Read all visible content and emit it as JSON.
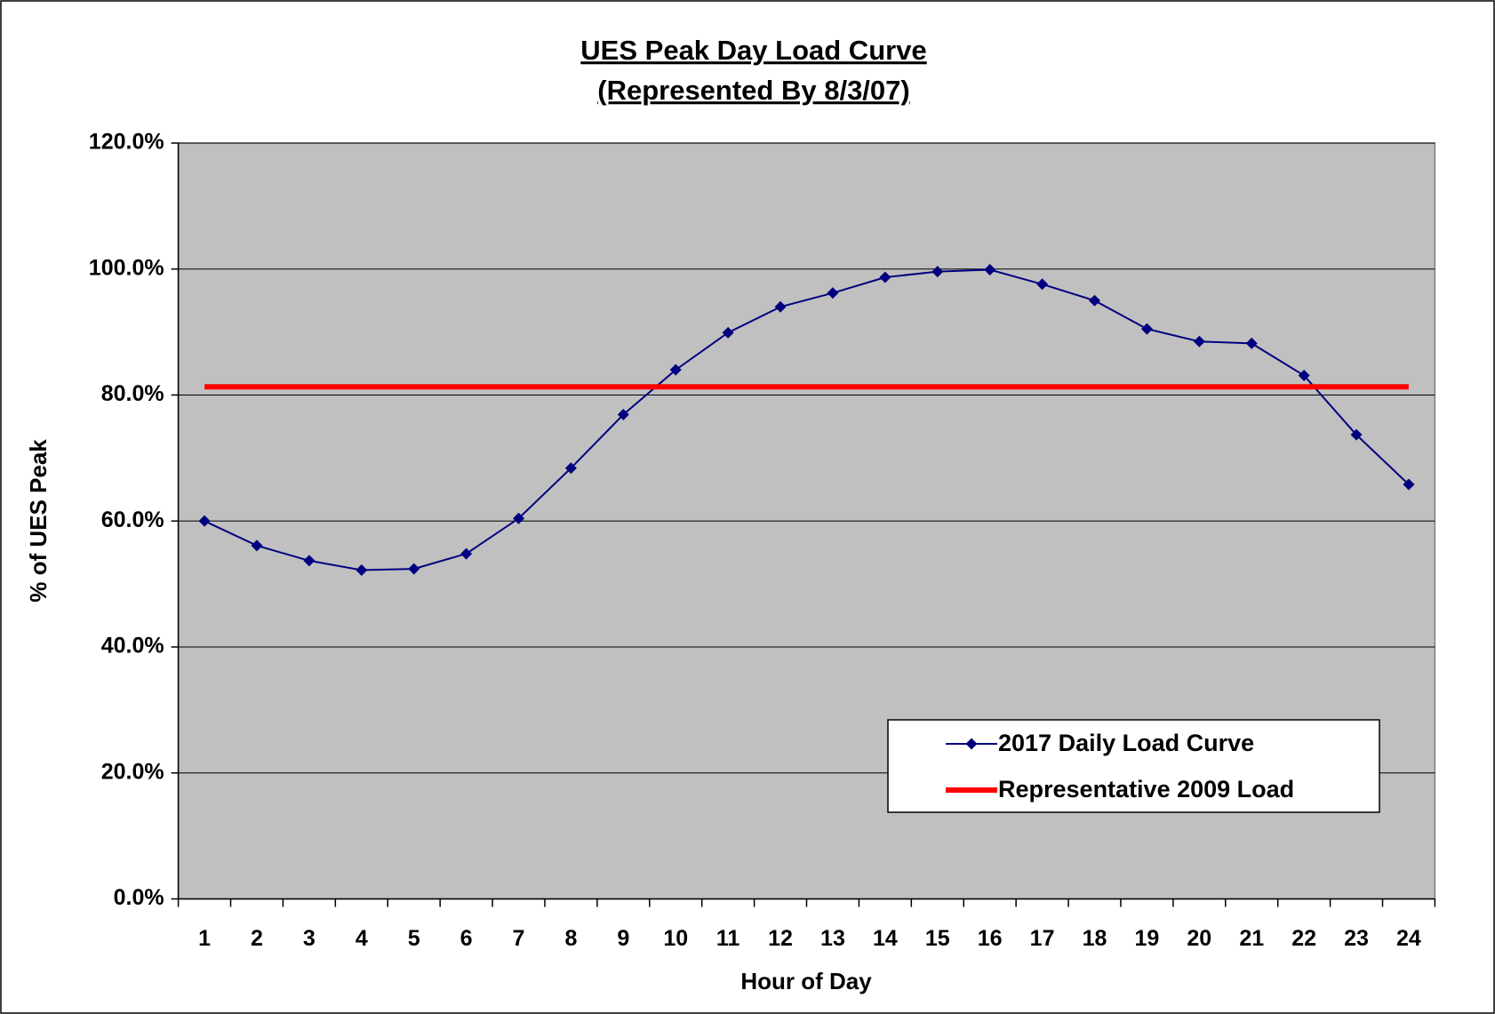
{
  "chart_data": {
    "type": "line",
    "title": "UES Peak Day Load Curve",
    "subtitle": "(Represented By 8/3/07)",
    "x_label": "Hour of Day",
    "y_label": "% of UES Peak",
    "categories": [
      "1",
      "2",
      "3",
      "4",
      "5",
      "6",
      "7",
      "8",
      "9",
      "10",
      "11",
      "12",
      "13",
      "14",
      "15",
      "16",
      "17",
      "18",
      "19",
      "20",
      "21",
      "22",
      "23",
      "24"
    ],
    "series": [
      {
        "name": "2017 Daily Load Curve",
        "color": "#000080",
        "marker": "diamond",
        "values": [
          60.0,
          56.1,
          53.7,
          52.2,
          52.4,
          54.8,
          60.4,
          68.4,
          76.9,
          84.0,
          89.9,
          94.0,
          96.2,
          98.7,
          99.6,
          99.9,
          97.6,
          95.0,
          90.5,
          88.5,
          88.2,
          83.1,
          73.7,
          65.8
        ]
      },
      {
        "name": "Representative 2009 Load",
        "color": "#ff0000",
        "marker": "none",
        "values": [
          81.3,
          81.3,
          81.3,
          81.3,
          81.3,
          81.3,
          81.3,
          81.3,
          81.3,
          81.3,
          81.3,
          81.3,
          81.3,
          81.3,
          81.3,
          81.3,
          81.3,
          81.3,
          81.3,
          81.3,
          81.3,
          81.3,
          81.3,
          81.3
        ]
      }
    ],
    "ylim": [
      0,
      120
    ],
    "yticks": [
      {
        "value": 0,
        "label": "0.0%"
      },
      {
        "value": 20,
        "label": "20.0%"
      },
      {
        "value": 40,
        "label": "40.0%"
      },
      {
        "value": 60,
        "label": "60.0%"
      },
      {
        "value": 80,
        "label": "80.0%"
      },
      {
        "value": 100,
        "label": "100.0%"
      },
      {
        "value": 120,
        "label": "120.0%"
      }
    ],
    "grid": true,
    "plot_background": "#c0c0c0",
    "legend": "lower right"
  }
}
